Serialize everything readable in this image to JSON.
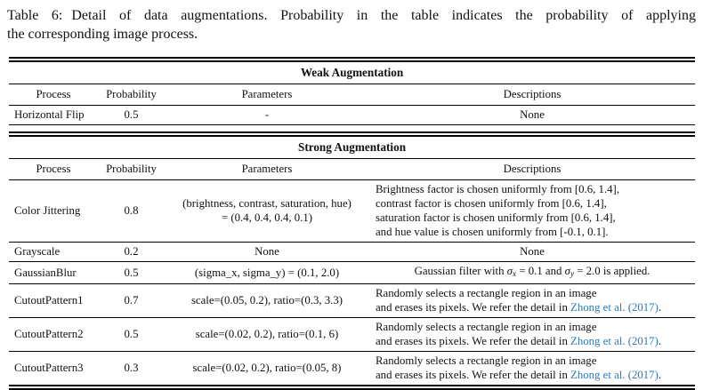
{
  "caption": {
    "label": "Table 6:",
    "line1": "Detail of data augmentations. Probability in the table indicates the probability of applying",
    "line2": "the corresponding image process."
  },
  "colors": {
    "citation_blue": "#2e7bb8",
    "text": "#111111",
    "rule": "#000000"
  },
  "table": {
    "columns": [
      "Process",
      "Probability",
      "Parameters",
      "Descriptions"
    ],
    "sections": [
      {
        "title": "Weak Augmentation",
        "rows": [
          {
            "process": "Horizontal Flip",
            "probability": "0.5",
            "parameters": [
              [
                {
                  "t": "-"
                }
              ]
            ],
            "descriptions": [
              [
                {
                  "t": "None"
                }
              ]
            ],
            "desc_align": "center"
          }
        ]
      },
      {
        "title": "Strong Augmentation",
        "rows": [
          {
            "process": "Color Jittering",
            "probability": "0.8",
            "parameters": [
              [
                {
                  "t": "(brightness, contrast, saturation, hue)"
                }
              ],
              [
                {
                  "t": "= (0.4, 0.4, 0.4, 0.1)"
                }
              ]
            ],
            "descriptions": [
              [
                {
                  "t": "Brightness factor is chosen uniformly from [0.6, 1.4],"
                }
              ],
              [
                {
                  "t": "contrast factor is chosen uniformly from [0.6, 1.4],"
                }
              ],
              [
                {
                  "t": "saturation factor is chosen uniformly from [0.6, 1.4],"
                }
              ],
              [
                {
                  "t": "and hue value is chosen uniformly from [-0.1, 0.1]."
                }
              ]
            ],
            "desc_align": "left"
          },
          {
            "process": "Grayscale",
            "probability": "0.2",
            "parameters": [
              [
                {
                  "t": "None"
                }
              ]
            ],
            "descriptions": [
              [
                {
                  "t": "None"
                }
              ]
            ],
            "desc_align": "center"
          },
          {
            "process": "GaussianBlur",
            "probability": "0.5",
            "parameters": [
              [
                {
                  "t": "(sigma_x, sigma_y) = (0.1, 2.0)"
                }
              ]
            ],
            "descriptions": [
              [
                {
                  "t": "Gaussian filter with "
                },
                {
                  "t": "σ",
                  "c": "i"
                },
                {
                  "t": "x",
                  "c": "sub"
                },
                {
                  "t": " = 0.1 and "
                },
                {
                  "t": "σ",
                  "c": "i"
                },
                {
                  "t": "y",
                  "c": "sub"
                },
                {
                  "t": " = 2.0 is applied."
                }
              ]
            ],
            "desc_align": "center"
          },
          {
            "process": "CutoutPattern1",
            "probability": "0.7",
            "parameters": [
              [
                {
                  "t": "scale=(0.05, 0.2), ratio=(0.3, 3.3)"
                }
              ]
            ],
            "descriptions": [
              [
                {
                  "t": "Randomly selects a rectangle region in an image"
                }
              ],
              [
                {
                  "t": "and erases its pixels. We refer the detail in "
                },
                {
                  "t": "Zhong et al. (2017)",
                  "c": "cite"
                },
                {
                  "t": "."
                }
              ]
            ],
            "desc_align": "left"
          },
          {
            "process": "CutoutPattern2",
            "probability": "0.5",
            "parameters": [
              [
                {
                  "t": "scale=(0.02, 0.2), ratio=(0.1, 6)"
                }
              ]
            ],
            "descriptions": [
              [
                {
                  "t": "Randomly selects a rectangle region in an image"
                }
              ],
              [
                {
                  "t": "and erases its pixels. We refer the detail in "
                },
                {
                  "t": "Zhong et al. (2017)",
                  "c": "cite"
                },
                {
                  "t": "."
                }
              ]
            ],
            "desc_align": "left"
          },
          {
            "process": "CutoutPattern3",
            "probability": "0.3",
            "parameters": [
              [
                {
                  "t": "scale=(0.02, 0.2), ratio=(0.05, 8)"
                }
              ]
            ],
            "descriptions": [
              [
                {
                  "t": "Randomly selects a rectangle region in an image"
                }
              ],
              [
                {
                  "t": "and erases its pixels. We refer the detail in "
                },
                {
                  "t": "Zhong et al. (2017)",
                  "c": "cite"
                },
                {
                  "t": "."
                }
              ]
            ],
            "desc_align": "left"
          }
        ]
      }
    ]
  }
}
